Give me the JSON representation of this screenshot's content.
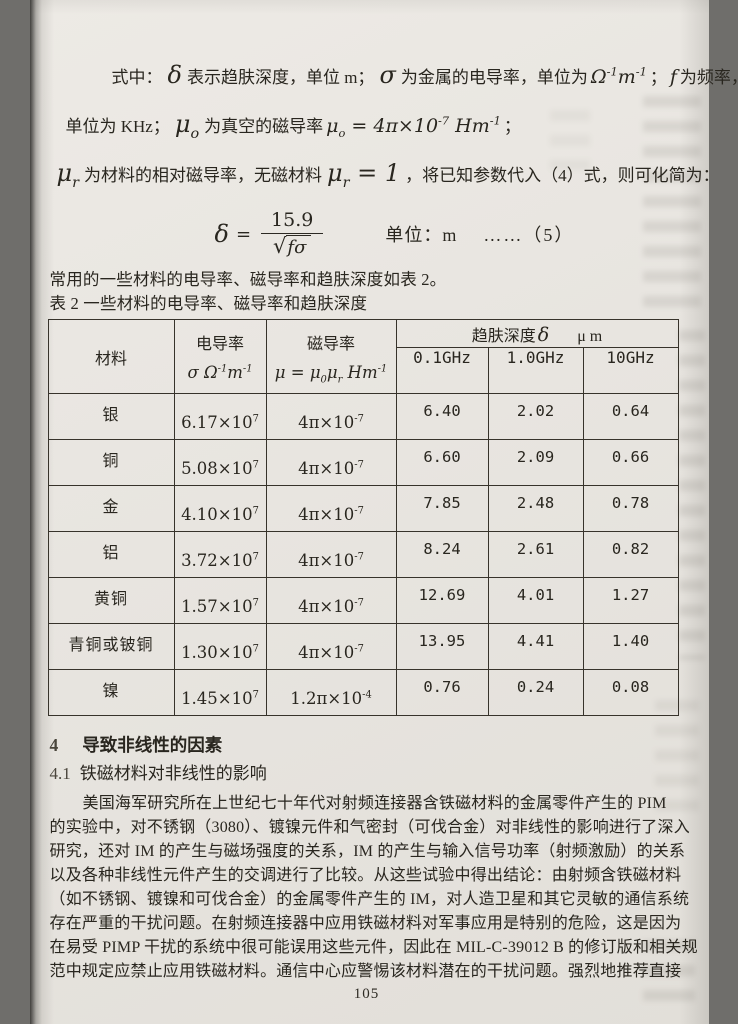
{
  "page": {
    "number": "105"
  },
  "colors": {
    "paper": "#e8e5e0",
    "ink": "#29261f",
    "edge_shadow": "#2a2927",
    "table_border": "#37332b"
  },
  "intro": {
    "l1_prefix": "式中：",
    "delta_symbol": "δ",
    "l1_skin": "表示趋肤深度，单位 m；",
    "sigma_symbol": "σ",
    "l1_cond": "为金属的电导率，单位为",
    "ohm_unit": "Ω^-1^m^-1^",
    "l1_semi": "；",
    "f_symbol": "f",
    "l1_freq": "为频率，",
    "l2_prefix": "单位为 KHz；",
    "mu0_symbol": "μ_o_",
    "l2_vacuum": "为真空的磁导率",
    "mu0_value": "μ_o_ = 4π×10^-7^ Hm^-1^",
    "l2_semi": "；",
    "mur_symbol": "μ_r_",
    "l3_rel": "为材料的相对磁导率，无磁材料",
    "mur_value": "μ_r_ = 1",
    "l3_rest": "，将已知参数代入（4）式，则可化简为："
  },
  "formula": {
    "delta": "δ",
    "equals": "=",
    "numerator": "15.9",
    "sqrt_sign": "√",
    "radicand": "fσ",
    "unit_label": "单位：m",
    "eq_number": "……（5）"
  },
  "table": {
    "intro_line": "常用的一些材料的电导率、磁导率和趋肤深度如表 2。",
    "caption": "表 2 一些材料的电导率、磁导率和趋肤深度",
    "headers": {
      "material": "材料",
      "conductivity_title": "电导率",
      "conductivity_unit": "σ Ω^-1^m^-1^",
      "permeability_title": "磁导率",
      "permeability_unit": "μ = μ_0_μ_r_ Hm^-1^",
      "skin_depth_title": "趋肤深度",
      "skin_depth_delta": "δ",
      "skin_depth_unit": "μ m",
      "freqs": [
        "0.1GHz",
        "1.0GHz",
        "10GHz"
      ]
    },
    "rows": [
      {
        "material": "银",
        "conductivity": "6.17×10^7^",
        "permeability": "4π×10^-7^",
        "depth_01ghz": "6.40",
        "depth_1ghz": "2.02",
        "depth_10ghz": "0.64"
      },
      {
        "material": "铜",
        "conductivity": "5.08×10^7^",
        "permeability": "4π×10^-7^",
        "depth_01ghz": "6.60",
        "depth_1ghz": "2.09",
        "depth_10ghz": "0.66"
      },
      {
        "material": "金",
        "conductivity": "4.10×10^7^",
        "permeability": "4π×10^-7^",
        "depth_01ghz": "7.85",
        "depth_1ghz": "2.48",
        "depth_10ghz": "0.78"
      },
      {
        "material": "铝",
        "conductivity": "3.72×10^7^",
        "permeability": "4π×10^-7^",
        "depth_01ghz": "8.24",
        "depth_1ghz": "2.61",
        "depth_10ghz": "0.82"
      },
      {
        "material": "黄铜",
        "conductivity": "1.57×10^7^",
        "permeability": "4π×10^-7^",
        "depth_01ghz": "12.69",
        "depth_1ghz": "4.01",
        "depth_10ghz": "1.27"
      },
      {
        "material": "青铜或铍铜",
        "conductivity": "1.30×10^7^",
        "permeability": "4π×10^-7^",
        "depth_01ghz": "13.95",
        "depth_1ghz": "4.41",
        "depth_10ghz": "1.40"
      },
      {
        "material": "镍",
        "conductivity": "1.45×10^7^",
        "permeability": "1.2π×10^-4^",
        "depth_01ghz": "0.76",
        "depth_1ghz": "0.24",
        "depth_10ghz": "0.08"
      }
    ]
  },
  "sections": {
    "s4_number": "4",
    "s4_title": "导致非线性的因素",
    "s41_number": "4.1",
    "s41_title": "铁磁材料对非线性的影响"
  },
  "body": {
    "lines": [
      "美国海军研究所在上世纪七十年代对射频连接器含铁磁材料的金属零件产生的 PIM",
      "的实验中，对不锈钢（3080）、镀镍元件和气密封（可伐合金）对非线性的影响进行了深入",
      "研究，还对 IM 的产生与磁场强度的关系，IM 的产生与输入信号功率（射频激励）的关系",
      "以及各种非线性元件产生的交调进行了比较。从这些试验中得出结论：由射频含铁磁材料",
      "（如不锈钢、镀镍和可伐合金）的金属零件产生的 IM，对人造卫星和其它灵敏的通信系统",
      "存在严重的干扰问题。在射频连接器中应用铁磁材料对军事应用是特别的危险，这是因为",
      "在易受 PIMP 干扰的系统中很可能误用这些元件，因此在 MIL-C-39012 B 的修订版和相关规",
      "范中规定应禁止应用铁磁材料。通信中心应警惕该材料潜在的干扰问题。强烈地推荐直接"
    ]
  }
}
